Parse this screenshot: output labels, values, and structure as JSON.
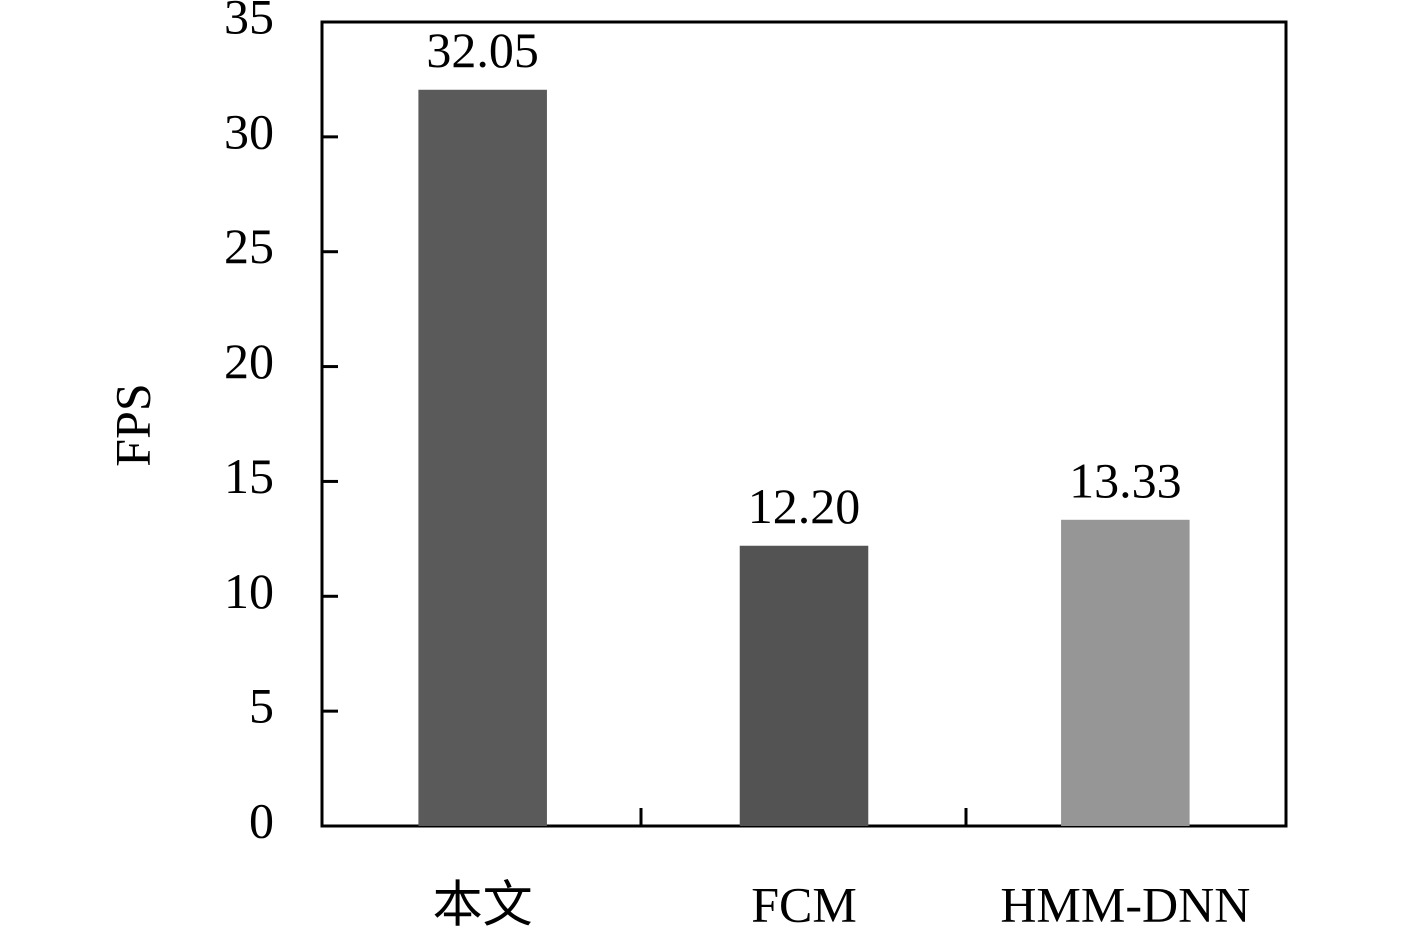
{
  "chart_data": {
    "type": "bar",
    "y_label": "FPS",
    "categories": [
      "本文",
      "FCM",
      "HMM-DNN"
    ],
    "values": [
      32.05,
      12.2,
      13.33
    ],
    "value_labels": [
      "32.05",
      "12.20",
      "13.33"
    ],
    "colors": [
      "#5a5a5a",
      "#535353",
      "#969696"
    ],
    "ylim": [
      0,
      35
    ],
    "yticks": [
      0,
      5,
      10,
      15,
      20,
      25,
      30,
      35
    ],
    "grid": false
  }
}
